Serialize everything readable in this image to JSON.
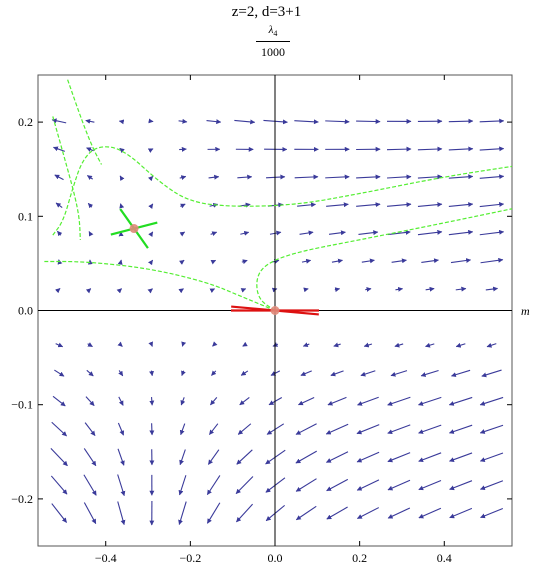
{
  "chart_data": {
    "type": "stream-plot",
    "title": "z=2, d=3+1",
    "ylabel_numerator": "λ",
    "ylabel_subscript": "4",
    "ylabel_denominator": "1000",
    "xlabel": "m",
    "xlim": [
      -0.56,
      0.56
    ],
    "ylim": [
      -0.25,
      0.25
    ],
    "x_ticks": [
      {
        "value": -0.4,
        "label": "−0.4"
      },
      {
        "value": -0.2,
        "label": "−0.2"
      },
      {
        "value": 0.0,
        "label": "0.0"
      },
      {
        "value": 0.2,
        "label": "0.2"
      },
      {
        "value": 0.4,
        "label": "0.4"
      }
    ],
    "y_ticks": [
      {
        "value": -0.2,
        "label": "−0.2"
      },
      {
        "value": -0.1,
        "label": "−0.1"
      },
      {
        "value": 0.0,
        "label": "0.0"
      },
      {
        "value": 0.1,
        "label": "0.1"
      },
      {
        "value": 0.2,
        "label": "0.2"
      }
    ],
    "arrow_color": "#3a3a9a",
    "separatrix_color": "#55ee33",
    "fixed_points": [
      {
        "x": -0.333,
        "y": 0.087,
        "marker_color": "#e08a7a",
        "eigen_color": "#22dd22",
        "directions": [
          [
            1,
            0.26
          ],
          [
            0.58,
            -0.82
          ]
        ]
      },
      {
        "x": 0.0,
        "y": 0.0,
        "marker_color": "#e08a7a",
        "eigen_color": "#dd1111",
        "directions": [
          [
            1,
            0
          ],
          [
            1,
            -0.09
          ]
        ]
      }
    ],
    "separatrices": [
      [
        [
          -0.525,
          0.08
        ],
        [
          -0.5,
          0.095
        ],
        [
          -0.478,
          0.13
        ],
        [
          -0.455,
          0.16
        ],
        [
          -0.42,
          0.175
        ],
        [
          -0.36,
          0.172
        ],
        [
          -0.27,
          0.135
        ],
        [
          -0.2,
          0.115
        ],
        [
          -0.1,
          0.11
        ],
        [
          0.05,
          0.112
        ],
        [
          0.2,
          0.124
        ],
        [
          0.4,
          0.142
        ],
        [
          0.56,
          0.153
        ]
      ],
      [
        [
          -0.525,
          0.206
        ],
        [
          -0.49,
          0.15
        ],
        [
          -0.472,
          0.12
        ],
        [
          -0.462,
          0.097
        ],
        [
          -0.46,
          0.075
        ]
      ],
      [
        [
          -0.49,
          0.245
        ],
        [
          -0.455,
          0.2
        ],
        [
          -0.43,
          0.172
        ],
        [
          -0.41,
          0.155
        ]
      ],
      [
        [
          -0.545,
          0.052
        ],
        [
          -0.45,
          0.052
        ],
        [
          -0.3,
          0.045
        ],
        [
          -0.16,
          0.03
        ],
        [
          -0.08,
          0.015
        ],
        [
          0.0,
          0.0
        ]
      ],
      [
        [
          0.0,
          0.0
        ],
        [
          -0.04,
          0.012
        ],
        [
          -0.045,
          0.035
        ],
        [
          -0.02,
          0.05
        ],
        [
          0.05,
          0.062
        ],
        [
          0.2,
          0.075
        ],
        [
          0.4,
          0.093
        ],
        [
          0.56,
          0.108
        ]
      ]
    ]
  }
}
